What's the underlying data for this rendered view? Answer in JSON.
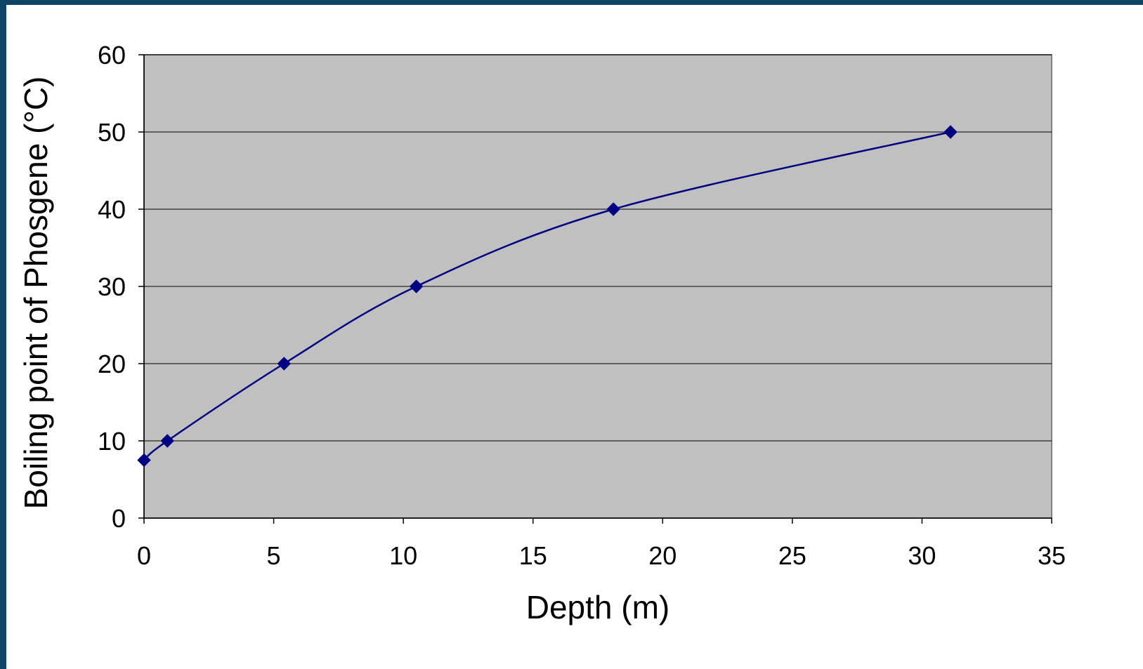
{
  "chart_data": {
    "type": "line",
    "title": "",
    "xlabel": "Depth (m)",
    "ylabel": "Boiling point of Phosgene (°C)",
    "xlim": [
      0,
      35
    ],
    "ylim": [
      0,
      60
    ],
    "xticks": [
      0,
      5,
      10,
      15,
      20,
      25,
      30,
      35
    ],
    "yticks": [
      0,
      10,
      20,
      30,
      40,
      50,
      60
    ],
    "grid": "horizontal",
    "legend": "none",
    "series": [
      {
        "x": [
          0,
          0.9,
          5.4,
          10.5,
          18.1,
          31.1
        ],
        "y": [
          7.5,
          10,
          20,
          30,
          40,
          50
        ],
        "marker": "diamond",
        "smooth": true
      }
    ],
    "colors": {
      "plot_background": "#c0c0c0",
      "line": "#000080",
      "marker": "#000080",
      "gridline": "#000000",
      "slide_frame": "#0e4466"
    }
  }
}
